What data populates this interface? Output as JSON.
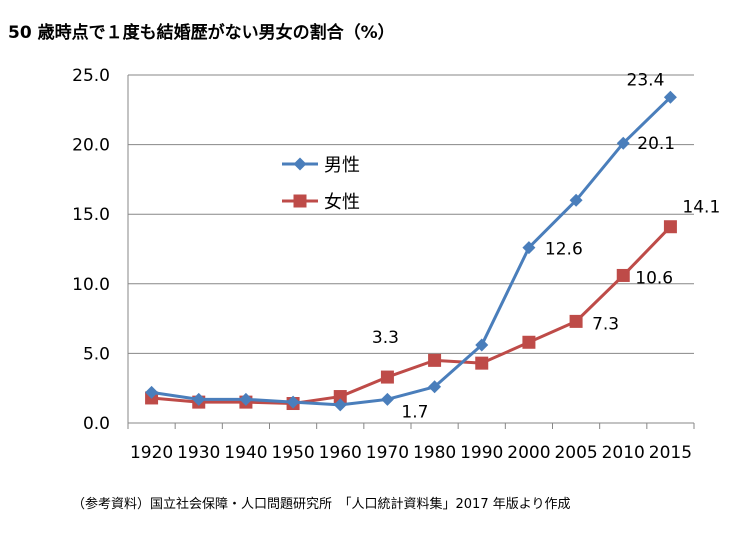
{
  "title": "50 歳時点で１度も結婚歴がない男女の割合（%）",
  "source": "（参考資料）国立社会保障・人口問題研究所　「人口統計資料集」2017 年版より作成",
  "chart_data": {
    "type": "line",
    "categories": [
      "1920",
      "1930",
      "1940",
      "1950",
      "1960",
      "1970",
      "1980",
      "1990",
      "2000",
      "2005",
      "2010",
      "2015"
    ],
    "ylim": [
      0,
      25
    ],
    "yticks": [
      "0.0",
      "5.0",
      "10.0",
      "15.0",
      "20.0",
      "25.0"
    ],
    "grid": true,
    "legend_position": "upper-left inside plot",
    "series": [
      {
        "name": "男性",
        "color": "#4a7ebb",
        "marker": "diamond",
        "values": [
          2.2,
          1.7,
          1.7,
          1.5,
          1.3,
          1.7,
          2.6,
          5.6,
          12.6,
          16.0,
          20.1,
          23.4
        ]
      },
      {
        "name": "女性",
        "color": "#be4b48",
        "marker": "square",
        "values": [
          1.8,
          1.5,
          1.5,
          1.4,
          1.9,
          3.3,
          4.5,
          4.3,
          5.8,
          7.3,
          10.6,
          14.1
        ]
      }
    ],
    "data_labels": [
      {
        "series": 0,
        "index": 11,
        "text": "23.4"
      },
      {
        "series": 0,
        "index": 10,
        "text": "20.1"
      },
      {
        "series": 0,
        "index": 8,
        "text": "12.6"
      },
      {
        "series": 0,
        "index": 5,
        "text": "1.7"
      },
      {
        "series": 1,
        "index": 11,
        "text": "14.1"
      },
      {
        "series": 1,
        "index": 10,
        "text": "10.6"
      },
      {
        "series": 1,
        "index": 9,
        "text": "7.3"
      },
      {
        "series": 1,
        "index": 5,
        "text": "3.3"
      }
    ]
  }
}
